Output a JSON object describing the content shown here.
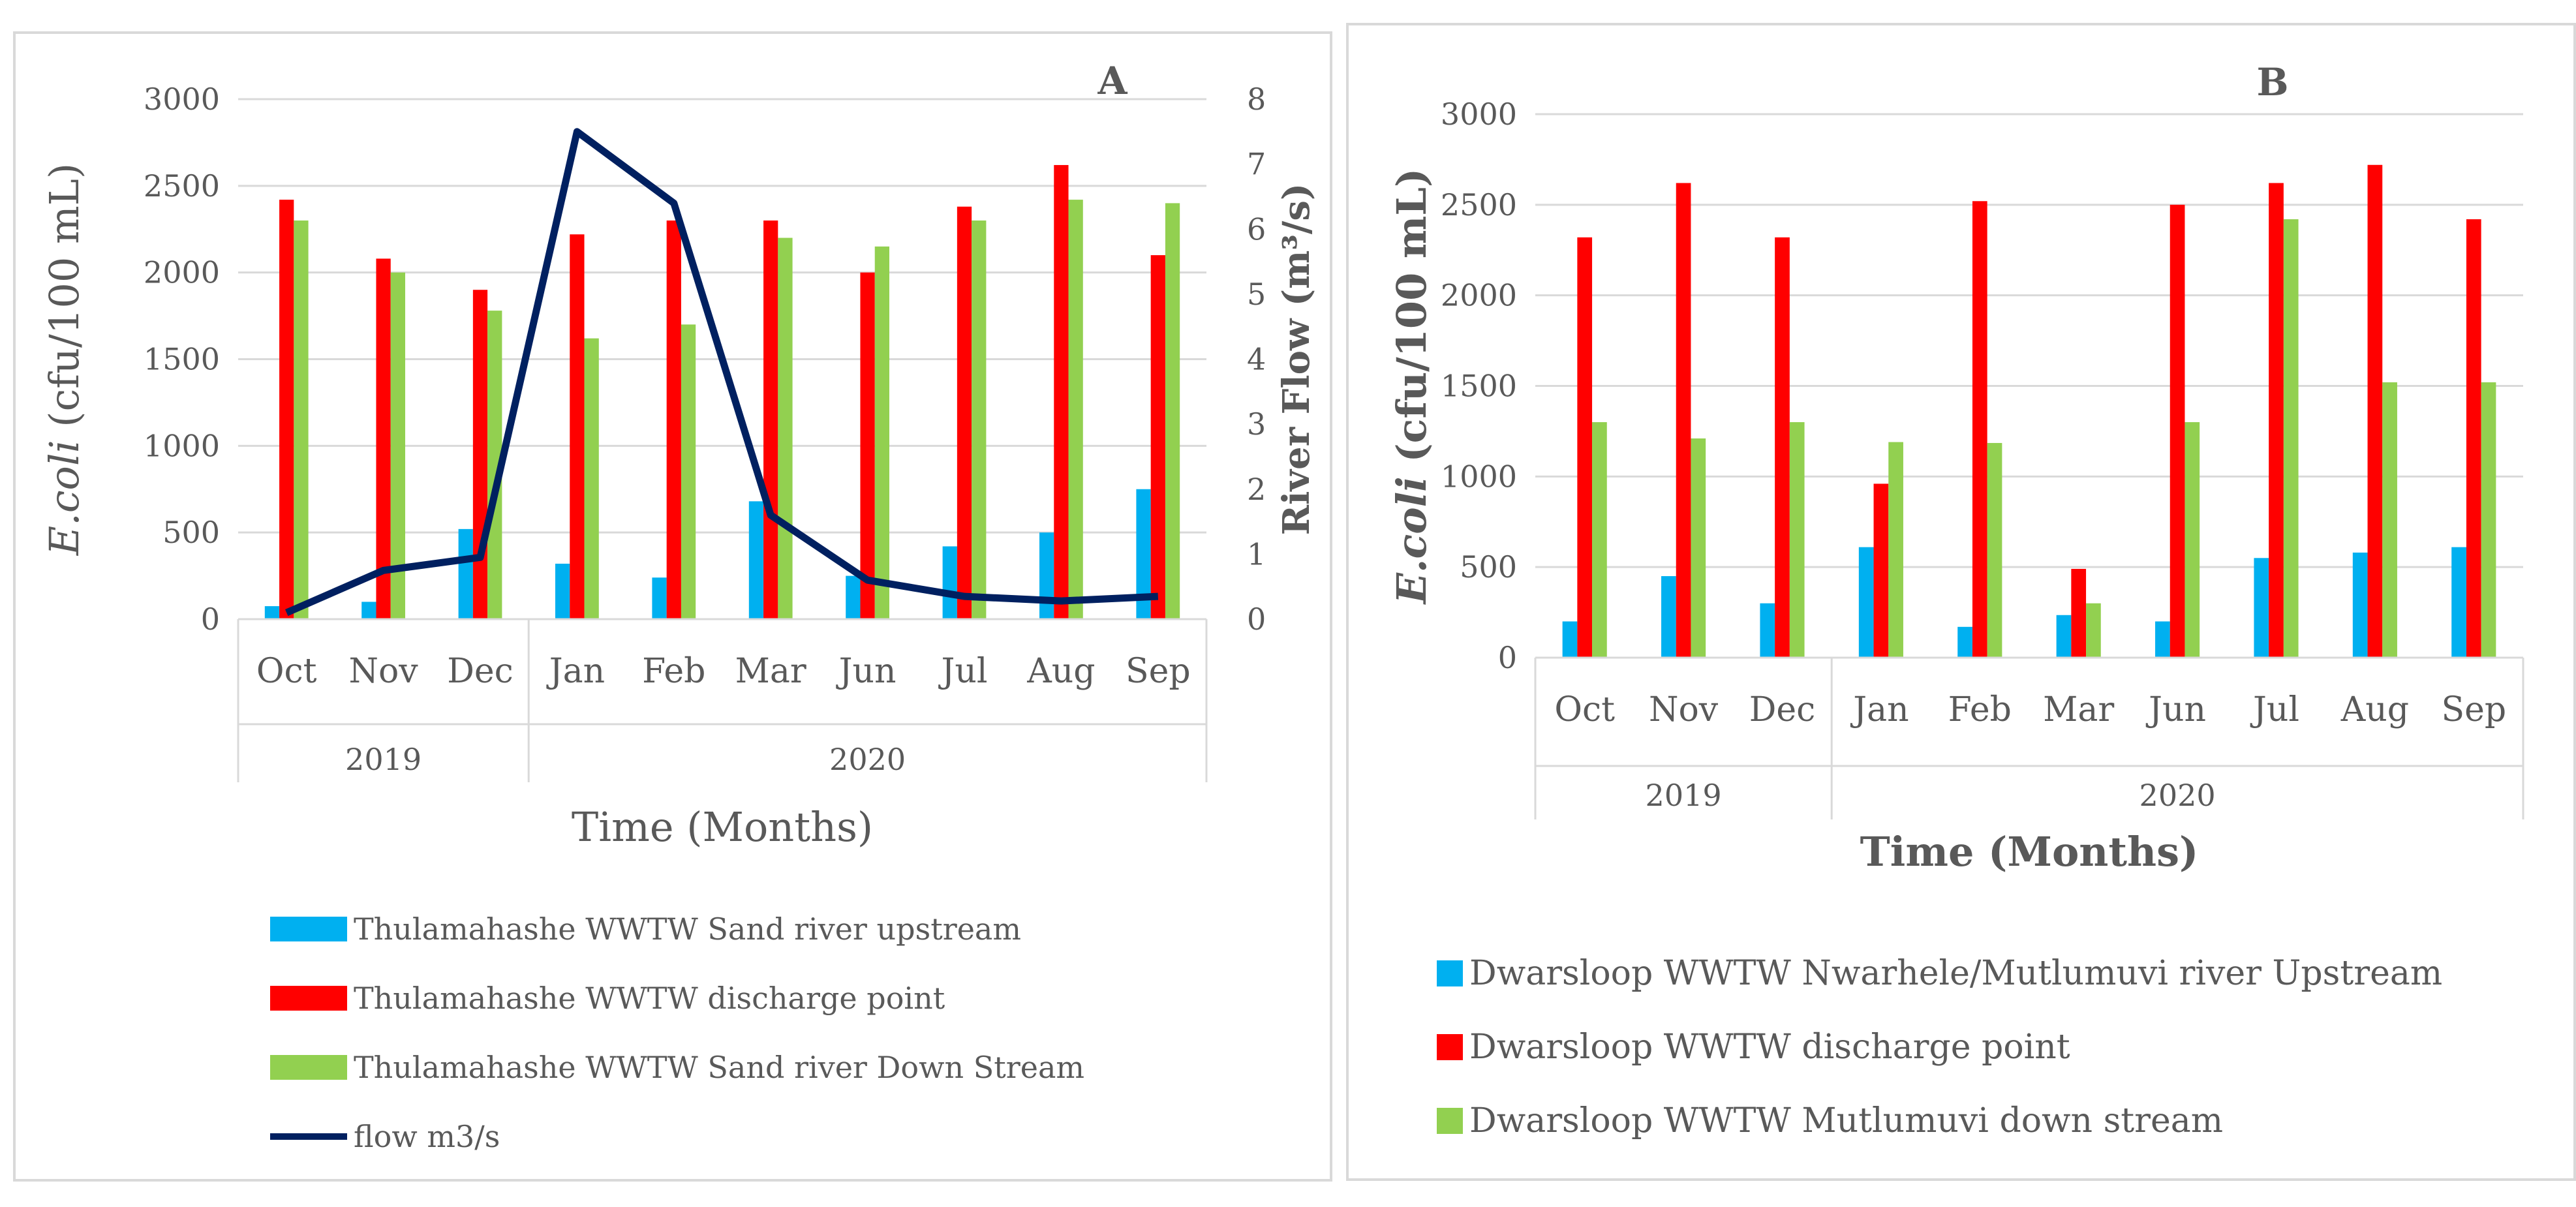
{
  "chart_data": [
    {
      "type": "bar",
      "panel_label": "A",
      "xlabel": "Time (Months)",
      "ylabel_italic": "E.coli",
      "ylabel_rest": " (cfu/100 mL)",
      "y2label": "River Flow (m³/s)",
      "ylim": [
        0,
        3000
      ],
      "yticks": [
        "0",
        "500",
        "1000",
        "1500",
        "2000",
        "2500",
        "3000"
      ],
      "y2lim": [
        0,
        8
      ],
      "y2ticks": [
        "0",
        "1",
        "2",
        "3",
        "4",
        "5",
        "6",
        "7",
        "8"
      ],
      "categories": [
        "Oct",
        "Nov",
        "Dec",
        "Jan",
        "Feb",
        "Mar",
        "Jun",
        "Jul",
        "Aug",
        "Sep"
      ],
      "year_groups": [
        {
          "label": "2019",
          "count": 3
        },
        {
          "label": "2020",
          "count": 7
        }
      ],
      "series": [
        {
          "name": "Thulamahashe WWTW  Sand river upstream",
          "color": "#00b0f0",
          "values": [
            75,
            100,
            520,
            320,
            240,
            680,
            250,
            420,
            500,
            750
          ]
        },
        {
          "name": "Thulamahashe WWTW discharge point",
          "color": "#ff0000",
          "values": [
            2420,
            2080,
            1900,
            2220,
            2300,
            2300,
            2000,
            2380,
            2620,
            2100
          ]
        },
        {
          "name": "Thulamahashe WWTW Sand river Down Stream",
          "color": "#92d050",
          "values": [
            2300,
            2000,
            1780,
            1620,
            1700,
            2200,
            2150,
            2300,
            2420,
            2400
          ]
        }
      ],
      "line_series": {
        "name": "flow m3/s",
        "color": "#002060",
        "values": [
          0.1,
          0.75,
          0.95,
          7.5,
          6.4,
          1.6,
          0.6,
          0.35,
          0.28,
          0.35
        ]
      }
    },
    {
      "type": "bar",
      "panel_label": "B",
      "xlabel": "Time (Months)",
      "ylabel_italic": "E.coli",
      "ylabel_rest": " (cfu/100 mL)",
      "ylim": [
        0,
        3000
      ],
      "yticks": [
        "0",
        "500",
        "1000",
        "1500",
        "2000",
        "2500",
        "3000"
      ],
      "categories": [
        "Oct",
        "Nov",
        "Dec",
        "Jan",
        "Feb",
        "Mar",
        "Jun",
        "Jul",
        "Aug",
        "Sep"
      ],
      "year_groups": [
        {
          "label": "2019",
          "count": 3
        },
        {
          "label": "2020",
          "count": 7
        }
      ],
      "series": [
        {
          "name": "Dwarsloop WWTW Nwarhele/Mutlumuvi river Upstream",
          "color": "#00b0f0",
          "values": [
            200,
            450,
            300,
            610,
            170,
            235,
            200,
            550,
            580,
            610
          ]
        },
        {
          "name": "Dwarsloop WWTW discharge point",
          "color": "#ff0000",
          "values": [
            2320,
            2620,
            2320,
            960,
            2520,
            490,
            2500,
            2620,
            2720,
            2420
          ]
        },
        {
          "name": "Dwarsloop WWTW  Mutlumuvi down stream",
          "color": "#92d050",
          "values": [
            1300,
            1210,
            1300,
            1190,
            1185,
            300,
            1300,
            2420,
            1520,
            1520
          ]
        }
      ]
    }
  ]
}
